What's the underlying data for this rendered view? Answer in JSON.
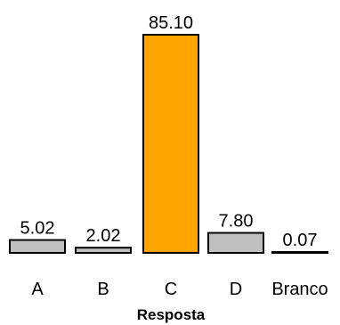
{
  "chart_data": {
    "type": "bar",
    "categories": [
      "A",
      "B",
      "C",
      "D",
      "Branco"
    ],
    "values": [
      5.02,
      2.02,
      85.1,
      7.8,
      0.07
    ],
    "value_labels": [
      "5.02",
      "2.02",
      "85.10",
      "7.80",
      "0.07"
    ],
    "xlabel": "Resposta",
    "ylabel": "",
    "ylim": [
      0,
      85.1
    ],
    "grid": false,
    "colors": {
      "default_bar": "#c0c0c0",
      "highlight_bar": "#ffa500",
      "outline": "#000000"
    },
    "highlight_category": "C"
  }
}
